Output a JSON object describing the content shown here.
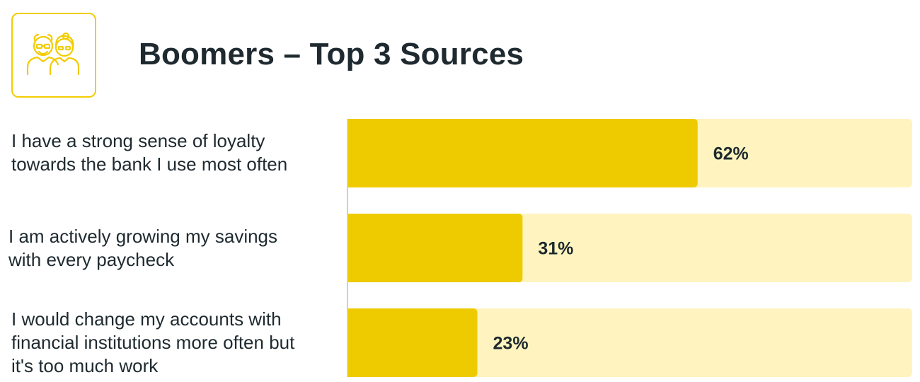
{
  "header": {
    "title": "Boomers – Top 3 Sources",
    "icon": "elderly-couple-icon"
  },
  "colors": {
    "bar": "#eecb00",
    "track": "#fff4bf",
    "icon": "#f2cc00",
    "text": "#1e2a2f",
    "axis": "#cfcfcf"
  },
  "chart_data": {
    "type": "bar",
    "orientation": "horizontal",
    "title": "Boomers – Top 3 Sources",
    "categories": [
      "I have a strong sense of loyalty towards the bank I use most often",
      "I am actively growing my savings with every paycheck",
      "I would change my accounts with financial institutions more often but it's too much work"
    ],
    "values": [
      62,
      31,
      23
    ],
    "value_labels": [
      "62%",
      "31%",
      "23%"
    ],
    "unit": "%",
    "xlim": [
      0,
      100
    ],
    "grid": false,
    "legend": "none"
  },
  "labels": [
    [
      "I have a strong sense of loyalty",
      "towards the bank I use most often"
    ],
    [
      "I am actively growing my savings",
      "with every paycheck"
    ],
    [
      "I would change my accounts with",
      "financial institutions more often but",
      "it's too much work"
    ]
  ]
}
